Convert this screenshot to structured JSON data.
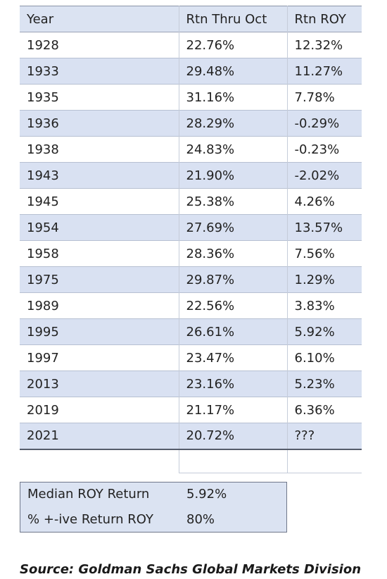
{
  "table": {
    "headers": [
      "Year",
      "Rtn Thru Oct",
      "Rtn ROY"
    ],
    "rows": [
      [
        "1928",
        "22.76%",
        "12.32%"
      ],
      [
        "1933",
        "29.48%",
        "11.27%"
      ],
      [
        "1935",
        "31.16%",
        "7.78%"
      ],
      [
        "1936",
        "28.29%",
        "-0.29%"
      ],
      [
        "1938",
        "24.83%",
        "-0.23%"
      ],
      [
        "1943",
        "21.90%",
        "-2.02%"
      ],
      [
        "1945",
        "25.38%",
        "4.26%"
      ],
      [
        "1954",
        "27.69%",
        "13.57%"
      ],
      [
        "1958",
        "28.36%",
        "7.56%"
      ],
      [
        "1975",
        "29.87%",
        "1.29%"
      ],
      [
        "1989",
        "22.56%",
        "3.83%"
      ],
      [
        "1995",
        "26.61%",
        "5.92%"
      ],
      [
        "1997",
        "23.47%",
        "6.10%"
      ],
      [
        "2013",
        "23.16%",
        "5.23%"
      ],
      [
        "2019",
        "21.17%",
        "6.36%"
      ],
      [
        "2021",
        "20.72%",
        "???"
      ]
    ]
  },
  "summary": {
    "median_label": "Median ROY Return",
    "median_value": "5.92%",
    "positive_label": "% +-ive Return ROY",
    "positive_value": "80%"
  },
  "source": "Source: Goldman Sachs Global Markets Division"
}
